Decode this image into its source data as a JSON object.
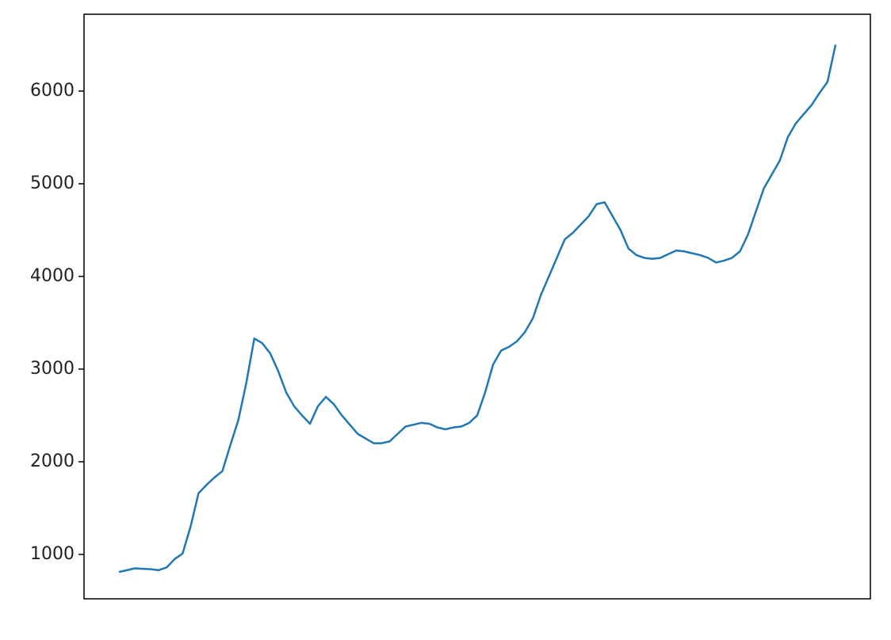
{
  "chart_data": {
    "type": "line",
    "categories": [
      null,
      null,
      null,
      null,
      null,
      null,
      null,
      null,
      null,
      null,
      null,
      null,
      null,
      null,
      null,
      null,
      null,
      null,
      null,
      null,
      null,
      null,
      null,
      null,
      null,
      null,
      null,
      null,
      null,
      null,
      null,
      null,
      null,
      null,
      null,
      null,
      null,
      null,
      null,
      null,
      null,
      null,
      null,
      null,
      null,
      null,
      null,
      null,
      null,
      null,
      null,
      null,
      null,
      null,
      null,
      null,
      null,
      null,
      null,
      null,
      null,
      null,
      null,
      null,
      null,
      null,
      null,
      null,
      null,
      null,
      null,
      null,
      null,
      null,
      null,
      null,
      null,
      null,
      null,
      null,
      null,
      null,
      null,
      null,
      null,
      null,
      null,
      null,
      null,
      null,
      null
    ],
    "series": [
      {
        "color": "#1f77b4",
        "values": [
          810,
          830,
          850,
          845,
          840,
          830,
          860,
          950,
          1010,
          1300,
          1660,
          1750,
          1830,
          1900,
          2180,
          2450,
          2850,
          3330,
          3280,
          3170,
          2980,
          2750,
          2600,
          2500,
          2410,
          2600,
          2700,
          2620,
          2500,
          2400,
          2300,
          2250,
          2200,
          2200,
          2220,
          2300,
          2380,
          2400,
          2420,
          2410,
          2370,
          2350,
          2370,
          2380,
          2420,
          2500,
          2750,
          3050,
          3200,
          3240,
          3300,
          3400,
          3550,
          3800,
          4000,
          4200,
          4400,
          4470,
          4560,
          4650,
          4780,
          4800,
          4650,
          4500,
          4300,
          4230,
          4200,
          4190,
          4200,
          4240,
          4280,
          4270,
          4250,
          4230,
          4200,
          4150,
          4170,
          4200,
          4270,
          4450,
          4700,
          4950,
          5100,
          5250,
          5500,
          5650,
          5750,
          5850,
          5980,
          6100,
          6500
        ]
      }
    ],
    "ylim": [
      521,
      6829
    ],
    "yticks": [
      1000,
      2000,
      3000,
      4000,
      5000,
      6000
    ]
  }
}
